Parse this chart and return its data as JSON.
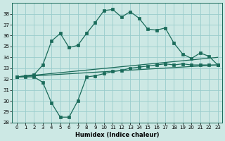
{
  "xlabel": "Humidex (Indice chaleur)",
  "background_color": "#cce8e4",
  "grid_color": "#99cccc",
  "line_color": "#1a6b5a",
  "xlim": [
    -0.5,
    23.5
  ],
  "ylim": [
    28,
    39
  ],
  "yticks": [
    28,
    29,
    30,
    31,
    32,
    33,
    34,
    35,
    36,
    37,
    38
  ],
  "xticks": [
    0,
    1,
    2,
    3,
    4,
    5,
    6,
    7,
    8,
    9,
    10,
    11,
    12,
    13,
    14,
    15,
    16,
    17,
    18,
    19,
    20,
    21,
    22,
    23
  ],
  "series1_x": [
    0,
    1,
    2,
    3,
    4,
    5,
    6,
    7,
    8,
    9,
    10,
    11,
    12,
    13,
    14,
    15,
    16,
    17,
    18,
    19,
    20,
    21,
    22,
    23
  ],
  "series1_y": [
    32.2,
    32.3,
    32.4,
    33.3,
    35.5,
    36.2,
    34.9,
    35.1,
    36.2,
    37.2,
    38.3,
    38.4,
    37.7,
    38.2,
    37.6,
    36.6,
    36.5,
    36.7,
    35.3,
    34.3,
    33.9,
    34.4,
    34.1,
    33.3
  ],
  "series2_x": [
    0,
    1,
    2,
    3,
    4,
    5,
    6,
    7,
    8,
    9,
    10,
    11,
    12,
    13,
    14,
    15,
    16,
    17,
    18,
    19,
    20,
    21,
    22,
    23
  ],
  "series2_y": [
    32.2,
    32.2,
    32.2,
    31.7,
    29.8,
    28.5,
    28.5,
    30.0,
    32.2,
    32.3,
    32.5,
    32.7,
    32.8,
    33.0,
    33.1,
    33.2,
    33.3,
    33.4,
    33.3,
    33.4,
    33.3,
    33.3,
    33.3,
    33.3
  ],
  "series3_x": [
    0,
    23
  ],
  "series3_y": [
    32.2,
    34.0
  ],
  "series4_x": [
    0,
    23
  ],
  "series4_y": [
    32.2,
    33.3
  ]
}
